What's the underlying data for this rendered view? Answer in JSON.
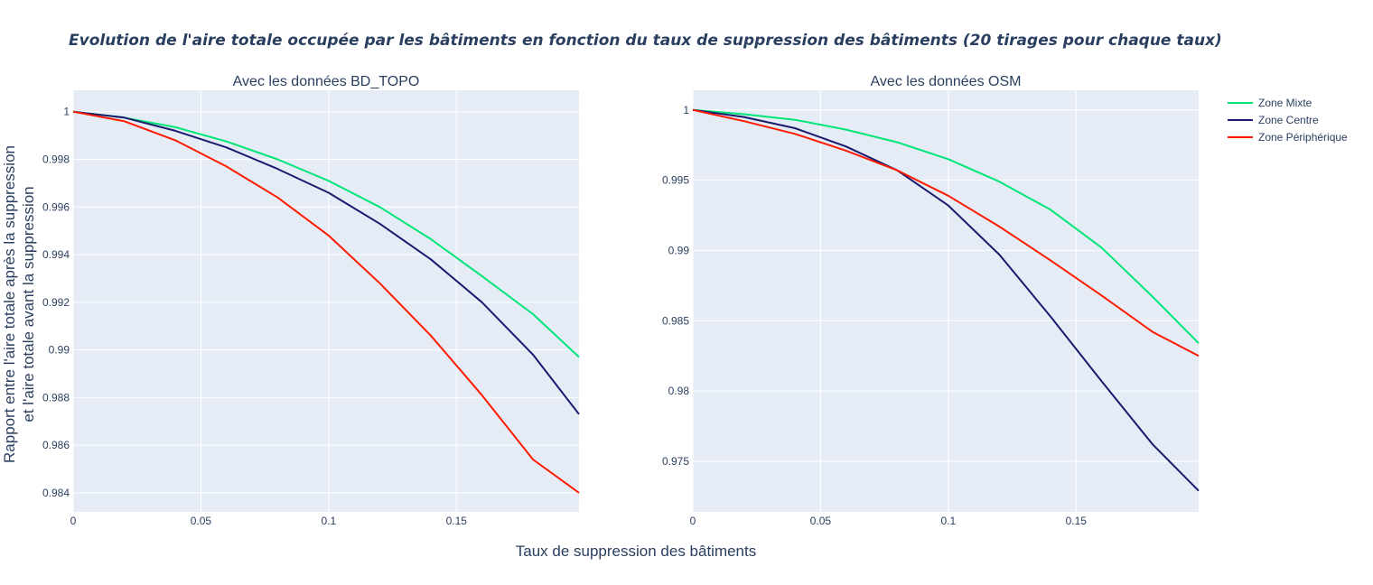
{
  "figure": {
    "title": "Evolution de l'aire totale occupée par les bâtiments en fonction du taux de suppression des bâtiments (20 tirages pour chaque taux)",
    "xlabel": "Taux de suppression des bâtiments",
    "ylabel_line1": "Rapport entre l'aire totale après la suppression",
    "ylabel_line2": "et l'aire totale avant la suppression"
  },
  "colors": {
    "plot_bg": "#e5ecf6",
    "grid": "#ffffff",
    "text": "#2a3f5f",
    "zone_mixte": "#00e676",
    "zone_centre": "#1a1a6e",
    "zone_peripherique": "#ff1a00"
  },
  "legend": {
    "position": "top-right",
    "items": [
      "Zone Mixte",
      "Zone Centre",
      "Zone Périphérique"
    ]
  },
  "chart_data": [
    {
      "type": "line",
      "title": "Avec les données BD_TOPO",
      "xlim": [
        0,
        0.198
      ],
      "ylim": [
        0.9832,
        1.0009
      ],
      "xticks": [
        0,
        0.05,
        0.1,
        0.15
      ],
      "xtick_labels": [
        "0",
        "0.05",
        "0.1",
        "0.15"
      ],
      "yticks": [
        0.984,
        0.986,
        0.988,
        0.99,
        0.992,
        0.994,
        0.996,
        0.998,
        1
      ],
      "ytick_labels": [
        "0.984",
        "0.986",
        "0.988",
        "0.99",
        "0.992",
        "0.994",
        "0.996",
        "0.998",
        "1"
      ],
      "series": [
        {
          "name": "Zone Mixte",
          "color_key": "zone_mixte",
          "x": [
            0,
            0.02,
            0.04,
            0.06,
            0.08,
            0.1,
            0.12,
            0.14,
            0.16,
            0.18,
            0.198
          ],
          "y": [
            1.0,
            0.99975,
            0.99935,
            0.99875,
            0.998,
            0.9971,
            0.996,
            0.99465,
            0.9931,
            0.9915,
            0.9897
          ]
        },
        {
          "name": "Zone Centre",
          "color_key": "zone_centre",
          "x": [
            0,
            0.02,
            0.04,
            0.06,
            0.08,
            0.1,
            0.12,
            0.14,
            0.16,
            0.18,
            0.198
          ],
          "y": [
            1.0,
            0.99975,
            0.9992,
            0.9985,
            0.9976,
            0.9966,
            0.9953,
            0.9938,
            0.992,
            0.9898,
            0.9873
          ]
        },
        {
          "name": "Zone Périphérique",
          "color_key": "zone_peripherique",
          "x": [
            0,
            0.02,
            0.04,
            0.06,
            0.08,
            0.1,
            0.12,
            0.14,
            0.16,
            0.18,
            0.198
          ],
          "y": [
            1.0,
            0.9996,
            0.9988,
            0.9977,
            0.9964,
            0.9948,
            0.9928,
            0.9906,
            0.9881,
            0.9854,
            0.984
          ]
        }
      ]
    },
    {
      "type": "line",
      "title": "Avec les données OSM",
      "xlim": [
        0,
        0.198
      ],
      "ylim": [
        0.9714,
        1.0014
      ],
      "xticks": [
        0,
        0.05,
        0.1,
        0.15
      ],
      "xtick_labels": [
        "0",
        "0.05",
        "0.1",
        "0.15"
      ],
      "yticks": [
        0.975,
        0.98,
        0.985,
        0.99,
        0.995,
        1
      ],
      "ytick_labels": [
        "0.975",
        "0.98",
        "0.985",
        "0.99",
        "0.995",
        "1"
      ],
      "series": [
        {
          "name": "Zone Mixte",
          "color_key": "zone_mixte",
          "x": [
            0,
            0.02,
            0.04,
            0.06,
            0.08,
            0.1,
            0.12,
            0.14,
            0.16,
            0.18,
            0.198
          ],
          "y": [
            1.0,
            0.9997,
            0.9993,
            0.9986,
            0.9977,
            0.9965,
            0.9949,
            0.9929,
            0.9902,
            0.9867,
            0.9834
          ]
        },
        {
          "name": "Zone Centre",
          "color_key": "zone_centre",
          "x": [
            0,
            0.02,
            0.04,
            0.06,
            0.08,
            0.1,
            0.12,
            0.14,
            0.16,
            0.18,
            0.198
          ],
          "y": [
            1.0,
            0.9995,
            0.9987,
            0.9974,
            0.9957,
            0.9932,
            0.9897,
            0.9853,
            0.9807,
            0.9762,
            0.9729
          ]
        },
        {
          "name": "Zone Périphérique",
          "color_key": "zone_peripherique",
          "x": [
            0,
            0.02,
            0.04,
            0.06,
            0.08,
            0.1,
            0.12,
            0.14,
            0.16,
            0.18,
            0.198
          ],
          "y": [
            1.0,
            0.9992,
            0.9983,
            0.9971,
            0.9957,
            0.9939,
            0.9917,
            0.9893,
            0.9868,
            0.9842,
            0.9825
          ]
        }
      ]
    }
  ]
}
